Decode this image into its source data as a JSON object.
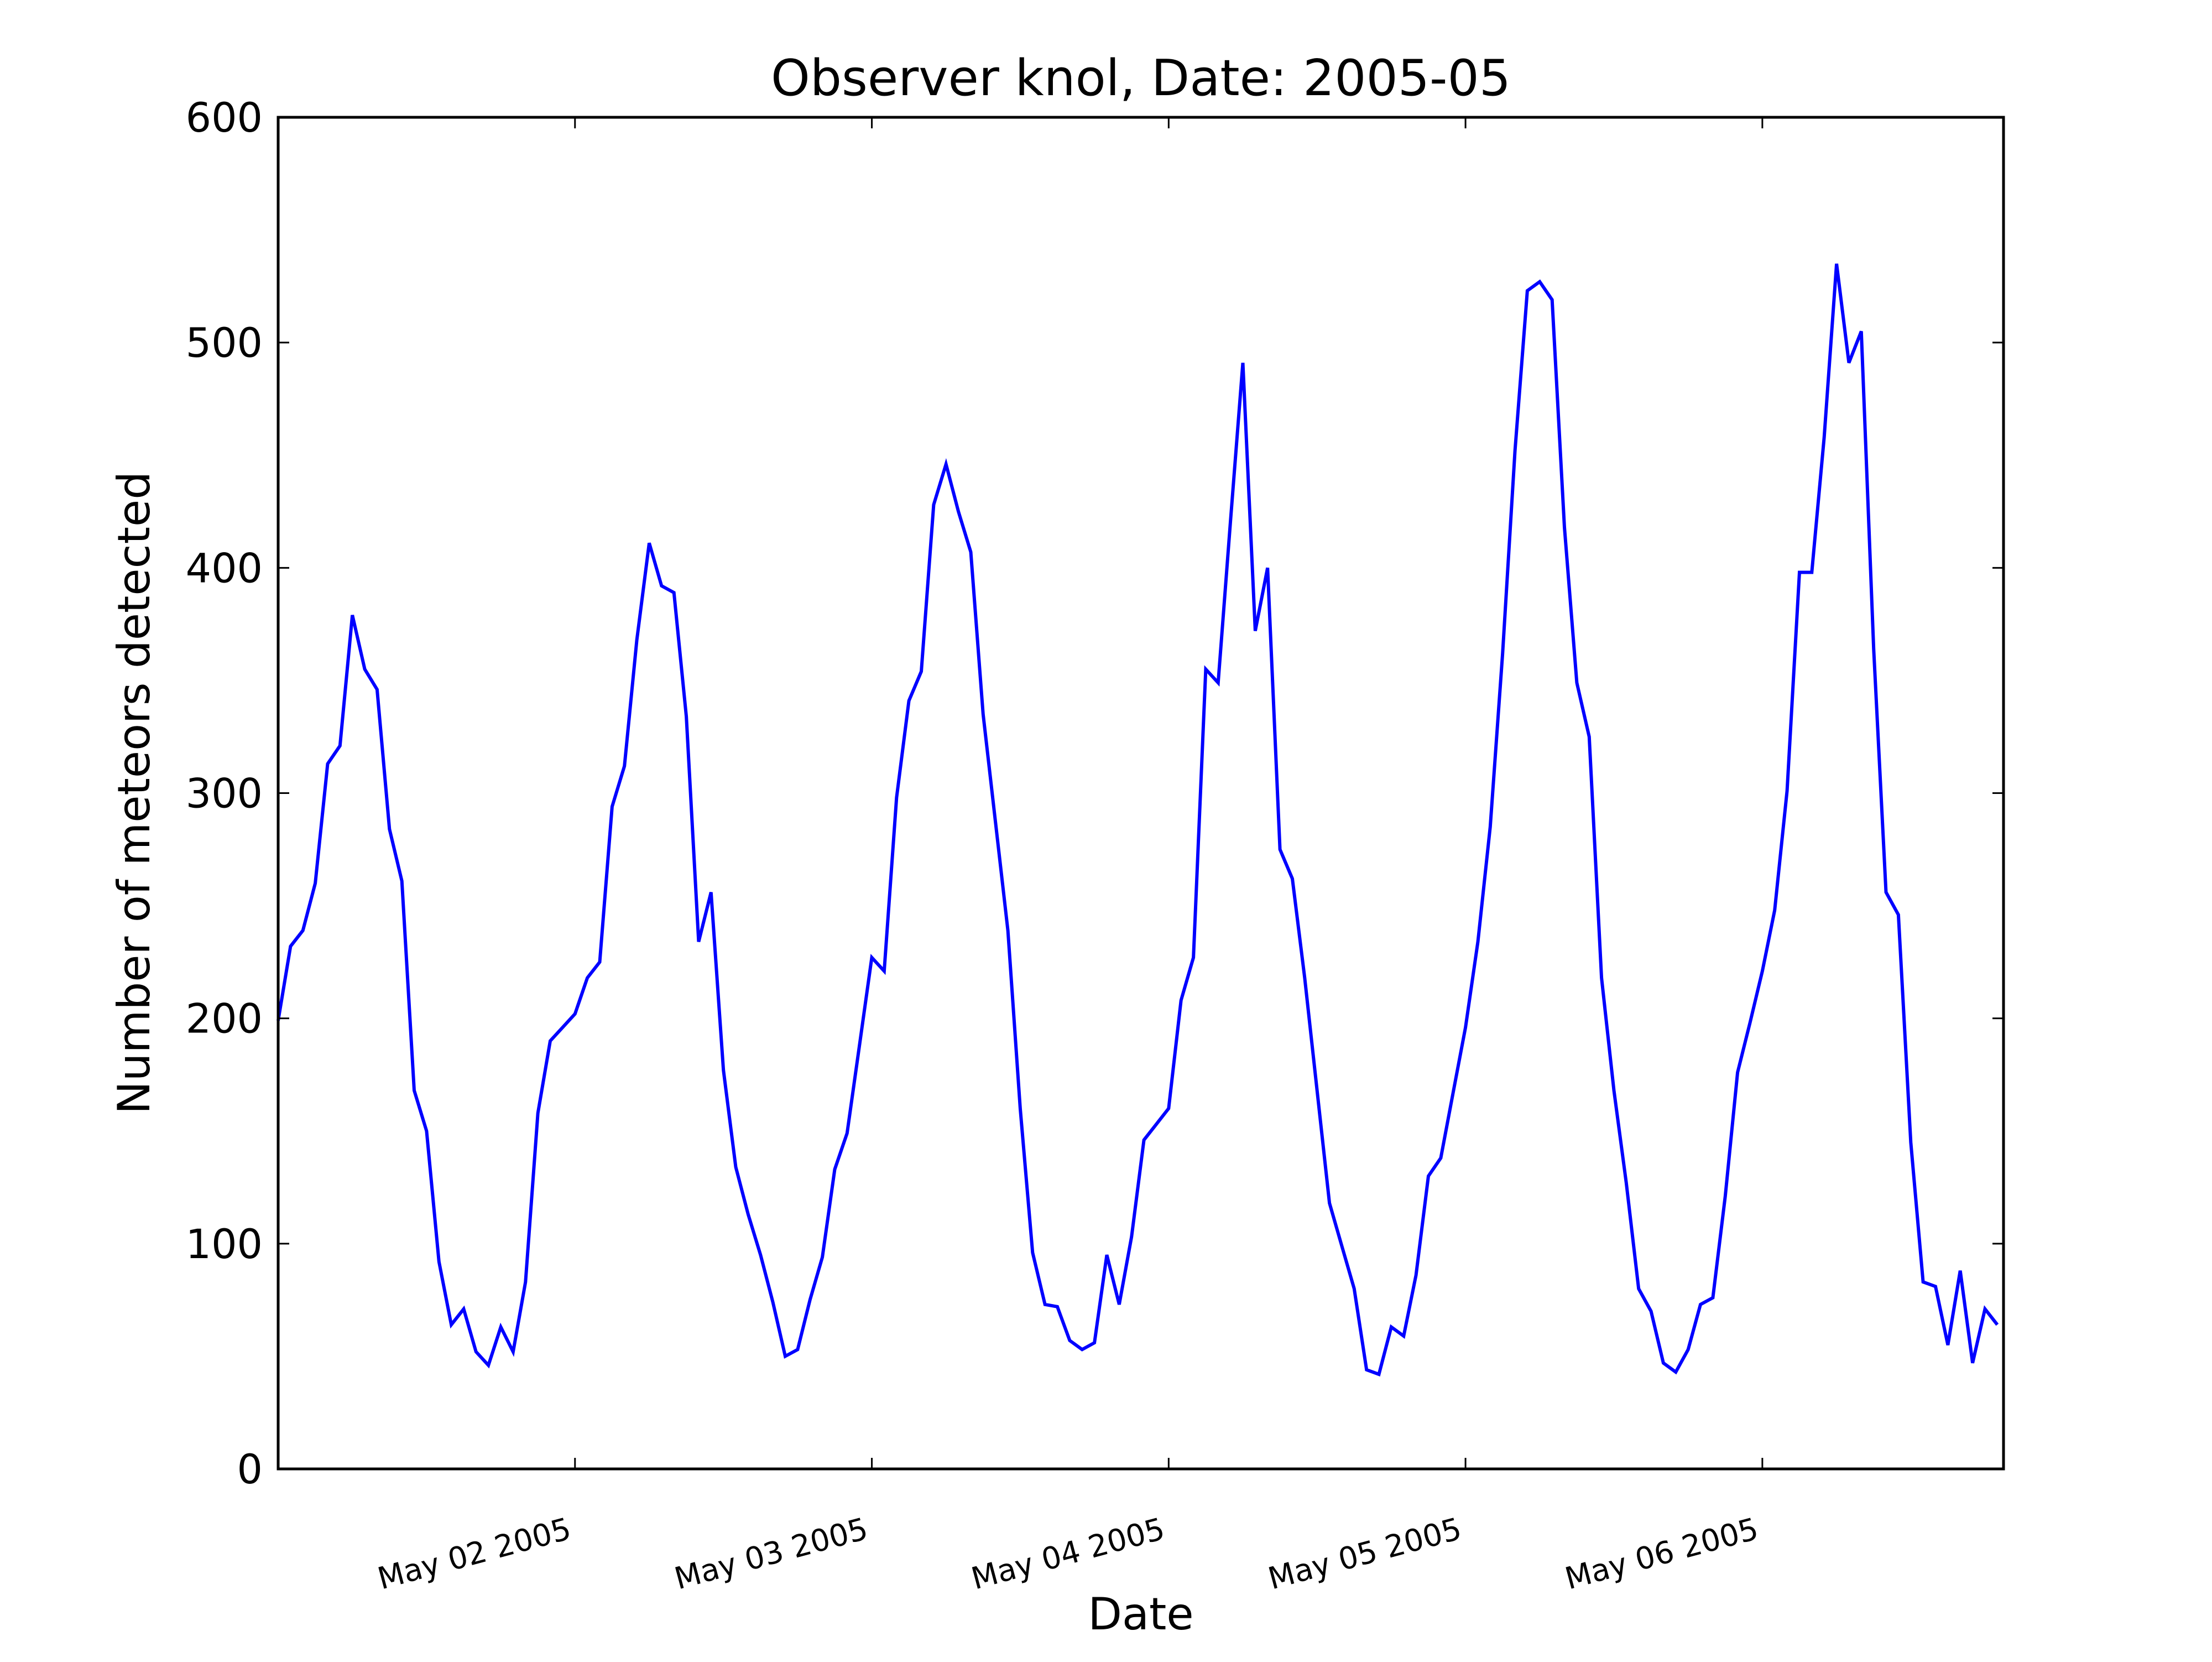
{
  "chart_data": {
    "type": "line",
    "title": "Observer knol, Date: 2005-05",
    "xlabel": "Date",
    "ylabel": "Number of meteors detected",
    "ylim": [
      0,
      600
    ],
    "xlim": [
      "2005-05-01T00:00",
      "2005-05-06T19:30"
    ],
    "yticks": [
      0,
      100,
      200,
      300,
      400,
      500,
      600
    ],
    "xticks": [
      {
        "value": "2005-05-02T00:00",
        "label": "May 02 2005"
      },
      {
        "value": "2005-05-03T00:00",
        "label": "May 03 2005"
      },
      {
        "value": "2005-05-04T00:00",
        "label": "May 04 2005"
      },
      {
        "value": "2005-05-05T00:00",
        "label": "May 05 2005"
      },
      {
        "value": "2005-05-06T00:00",
        "label": "May 06 2005"
      }
    ],
    "grid": false,
    "legend": "none",
    "line_color": "#0000ff",
    "series": [
      {
        "x": [
          "2005-05-01T00:00",
          "2005-05-01T01:00",
          "2005-05-01T02:00",
          "2005-05-01T03:00",
          "2005-05-01T04:00",
          "2005-05-01T05:00",
          "2005-05-01T06:00",
          "2005-05-01T07:00",
          "2005-05-01T08:00",
          "2005-05-01T09:00",
          "2005-05-01T10:00",
          "2005-05-01T11:00",
          "2005-05-01T12:00",
          "2005-05-01T13:00",
          "2005-05-01T14:00",
          "2005-05-01T15:00",
          "2005-05-01T16:00",
          "2005-05-01T17:00",
          "2005-05-01T18:00",
          "2005-05-01T19:00",
          "2005-05-01T20:00",
          "2005-05-01T21:00",
          "2005-05-01T22:00",
          "2005-05-01T23:00",
          "2005-05-02T00:00",
          "2005-05-02T01:00",
          "2005-05-02T02:00",
          "2005-05-02T03:00",
          "2005-05-02T04:00",
          "2005-05-02T05:00",
          "2005-05-02T06:00",
          "2005-05-02T07:00",
          "2005-05-02T08:00",
          "2005-05-02T09:00",
          "2005-05-02T10:00",
          "2005-05-02T11:00",
          "2005-05-02T12:00",
          "2005-05-02T13:00",
          "2005-05-02T14:00",
          "2005-05-02T15:00",
          "2005-05-02T16:00",
          "2005-05-02T17:00",
          "2005-05-02T18:00",
          "2005-05-02T19:00",
          "2005-05-02T20:00",
          "2005-05-02T21:00",
          "2005-05-02T22:00",
          "2005-05-02T23:00",
          "2005-05-03T00:00",
          "2005-05-03T01:00",
          "2005-05-03T02:00",
          "2005-05-03T03:00",
          "2005-05-03T04:00",
          "2005-05-03T05:00",
          "2005-05-03T06:00",
          "2005-05-03T07:00",
          "2005-05-03T08:00",
          "2005-05-03T09:00",
          "2005-05-03T10:00",
          "2005-05-03T11:00",
          "2005-05-03T12:00",
          "2005-05-03T13:00",
          "2005-05-03T14:00",
          "2005-05-03T15:00",
          "2005-05-03T16:00",
          "2005-05-03T17:00",
          "2005-05-03T18:00",
          "2005-05-03T19:00",
          "2005-05-03T20:00",
          "2005-05-03T21:00",
          "2005-05-03T22:00",
          "2005-05-03T23:00",
          "2005-05-04T00:00",
          "2005-05-04T01:00",
          "2005-05-04T02:00",
          "2005-05-04T03:00",
          "2005-05-04T04:00",
          "2005-05-04T05:00",
          "2005-05-04T06:00",
          "2005-05-04T07:00",
          "2005-05-04T08:00",
          "2005-05-04T09:00",
          "2005-05-04T10:00",
          "2005-05-04T11:00",
          "2005-05-04T12:00",
          "2005-05-04T13:00",
          "2005-05-04T14:00",
          "2005-05-04T15:00",
          "2005-05-04T16:00",
          "2005-05-04T17:00",
          "2005-05-04T18:00",
          "2005-05-04T19:00",
          "2005-05-04T20:00",
          "2005-05-04T21:00",
          "2005-05-04T22:00",
          "2005-05-04T23:00",
          "2005-05-05T00:00",
          "2005-05-05T01:00",
          "2005-05-05T02:00",
          "2005-05-05T03:00",
          "2005-05-05T04:00",
          "2005-05-05T05:00",
          "2005-05-05T06:00",
          "2005-05-05T07:00",
          "2005-05-05T08:00",
          "2005-05-05T09:00",
          "2005-05-05T10:00",
          "2005-05-05T11:00",
          "2005-05-05T12:00",
          "2005-05-05T13:00",
          "2005-05-05T14:00",
          "2005-05-05T15:00",
          "2005-05-05T16:00",
          "2005-05-05T17:00",
          "2005-05-05T18:00",
          "2005-05-05T19:00",
          "2005-05-05T20:00",
          "2005-05-05T21:00",
          "2005-05-05T22:00",
          "2005-05-05T23:00",
          "2005-05-06T00:00",
          "2005-05-06T01:00",
          "2005-05-06T02:00",
          "2005-05-06T03:00",
          "2005-05-06T04:00",
          "2005-05-06T05:00",
          "2005-05-06T06:00",
          "2005-05-06T07:00",
          "2005-05-06T08:00",
          "2005-05-06T09:00",
          "2005-05-06T10:00",
          "2005-05-06T11:00",
          "2005-05-06T12:00",
          "2005-05-06T13:00",
          "2005-05-06T14:00",
          "2005-05-06T15:00",
          "2005-05-06T16:00",
          "2005-05-06T17:00",
          "2005-05-06T18:00",
          "2005-05-06T19:00"
        ],
        "values": [
          199,
          232,
          239,
          260,
          313,
          321,
          379,
          355,
          346,
          284,
          261,
          168,
          150,
          92,
          64,
          71,
          52,
          46,
          63,
          52,
          83,
          158,
          190,
          196,
          202,
          218,
          225,
          294,
          312,
          368,
          411,
          392,
          389,
          334,
          234,
          256,
          177,
          134,
          113,
          95,
          74,
          50,
          53,
          75,
          94,
          133,
          149,
          188,
          227,
          221,
          298,
          341,
          354,
          428,
          446,
          425,
          407,
          335,
          287,
          239,
          160,
          96,
          73,
          72,
          57,
          53,
          56,
          95,
          73,
          103,
          146,
          153,
          160,
          208,
          227,
          355,
          349,
          421,
          491,
          372,
          400,
          275,
          262,
          218,
          168,
          118,
          99,
          80,
          44,
          42,
          63,
          59,
          86,
          130,
          138,
          167,
          196,
          234,
          285,
          362,
          452,
          523,
          527,
          519,
          418,
          349,
          325,
          218,
          168,
          127,
          80,
          70,
          47,
          43,
          53,
          73,
          76,
          121,
          176,
          198,
          221,
          248,
          301,
          398,
          398,
          458,
          535,
          491,
          505,
          364,
          256,
          246,
          145,
          83,
          81,
          55,
          88,
          47,
          71,
          64
        ]
      }
    ]
  }
}
